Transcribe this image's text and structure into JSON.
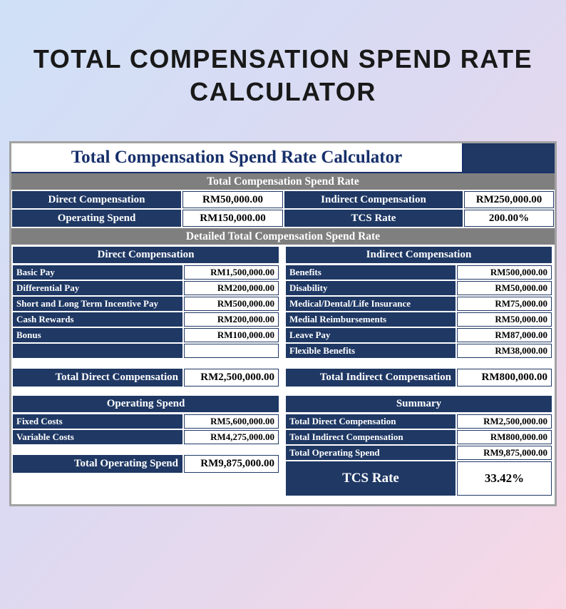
{
  "page": {
    "title_line1": "TOTAL COMPENSATION SPEND RATE",
    "title_line2": "CALCULATOR"
  },
  "sheet": {
    "title": "Total Compensation Spend Rate Calculator",
    "tcs_band": "Total Compensation Spend Rate",
    "detail_band": "Detailed Total Compensation Spend Rate",
    "top": {
      "rows": [
        {
          "l1": "Direct Compensation",
          "v1": "RM50,000.00",
          "l2": "Indirect Compensation",
          "v2": "RM250,000.00"
        },
        {
          "l1": "Operating Spend",
          "v1": "RM150,000.00",
          "l2": "TCS Rate",
          "v2": "200.00%"
        }
      ]
    },
    "direct": {
      "header": "Direct Compensation",
      "rows": [
        {
          "label": "Basic Pay",
          "value": "RM1,500,000.00"
        },
        {
          "label": "Differential Pay",
          "value": "RM200,000.00"
        },
        {
          "label": "Short and Long Term Incentive Pay",
          "value": "RM500,000.00"
        },
        {
          "label": "Cash Rewards",
          "value": "RM200,000.00"
        },
        {
          "label": "Bonus",
          "value": "RM100,000.00"
        },
        {
          "label": "",
          "value": ""
        }
      ],
      "total_label": "Total Direct Compensation",
      "total_value": "RM2,500,000.00"
    },
    "indirect": {
      "header": "Indirect Compensation",
      "rows": [
        {
          "label": "Benefits",
          "value": "RM500,000.00"
        },
        {
          "label": "Disability",
          "value": "RM50,000.00"
        },
        {
          "label": "Medical/Dental/Life Insurance",
          "value": "RM75,000.00"
        },
        {
          "label": "Medial Reimbursements",
          "value": "RM50,000.00"
        },
        {
          "label": "Leave Pay",
          "value": "RM87,000.00"
        },
        {
          "label": "Flexible Benefits",
          "value": "RM38,000.00"
        }
      ],
      "total_label": "Total Indirect Compensation",
      "total_value": "RM800,000.00"
    },
    "operating": {
      "header": "Operating Spend",
      "rows": [
        {
          "label": "Fixed Costs",
          "value": "RM5,600,000.00"
        },
        {
          "label": "Variable Costs",
          "value": "RM4,275,000.00"
        }
      ],
      "total_label": "Total Operating Spend",
      "total_value": "RM9,875,000.00"
    },
    "summary": {
      "header": "Summary",
      "rows": [
        {
          "label": "Total Direct Compensation",
          "value": "RM2,500,000.00"
        },
        {
          "label": "Total Indirect Compensation",
          "value": "RM800,000.00"
        },
        {
          "label": "Total Operating Spend",
          "value": "RM9,875,000.00"
        }
      ],
      "tcs_label": "TCS Rate",
      "tcs_value": "33.42%"
    },
    "colors": {
      "navy": "#1f3864",
      "band_gray": "#7f7f7f"
    }
  }
}
